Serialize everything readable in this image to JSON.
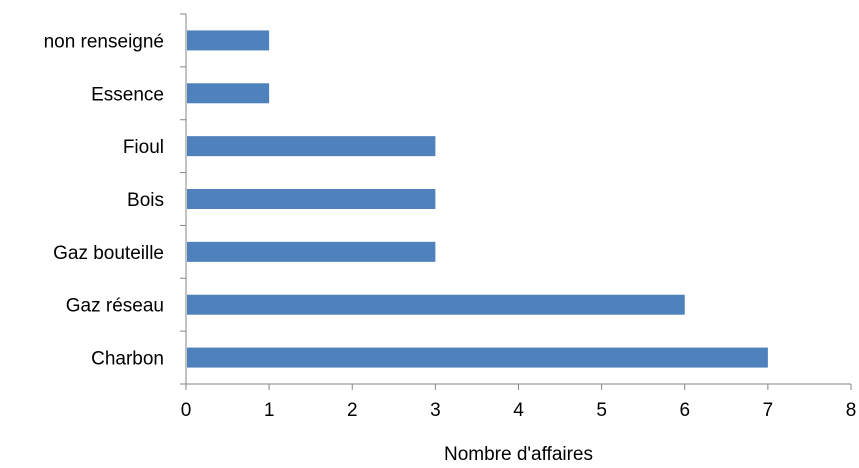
{
  "chart_data": {
    "type": "bar",
    "orientation": "horizontal",
    "categories": [
      "non renseigné",
      "Essence",
      "Fioul",
      "Bois",
      "Gaz bouteille",
      "Gaz réseau",
      "Charbon"
    ],
    "values": [
      1,
      1,
      3,
      3,
      3,
      6,
      7
    ],
    "xlabel": "Nombre d'affaires",
    "ylabel": "",
    "xlim": [
      0,
      8
    ],
    "xticks": [
      "0",
      "1",
      "2",
      "3",
      "4",
      "5",
      "6",
      "7",
      "8"
    ],
    "grid": false,
    "legend": "none",
    "bar_color": "#4f81bd"
  }
}
